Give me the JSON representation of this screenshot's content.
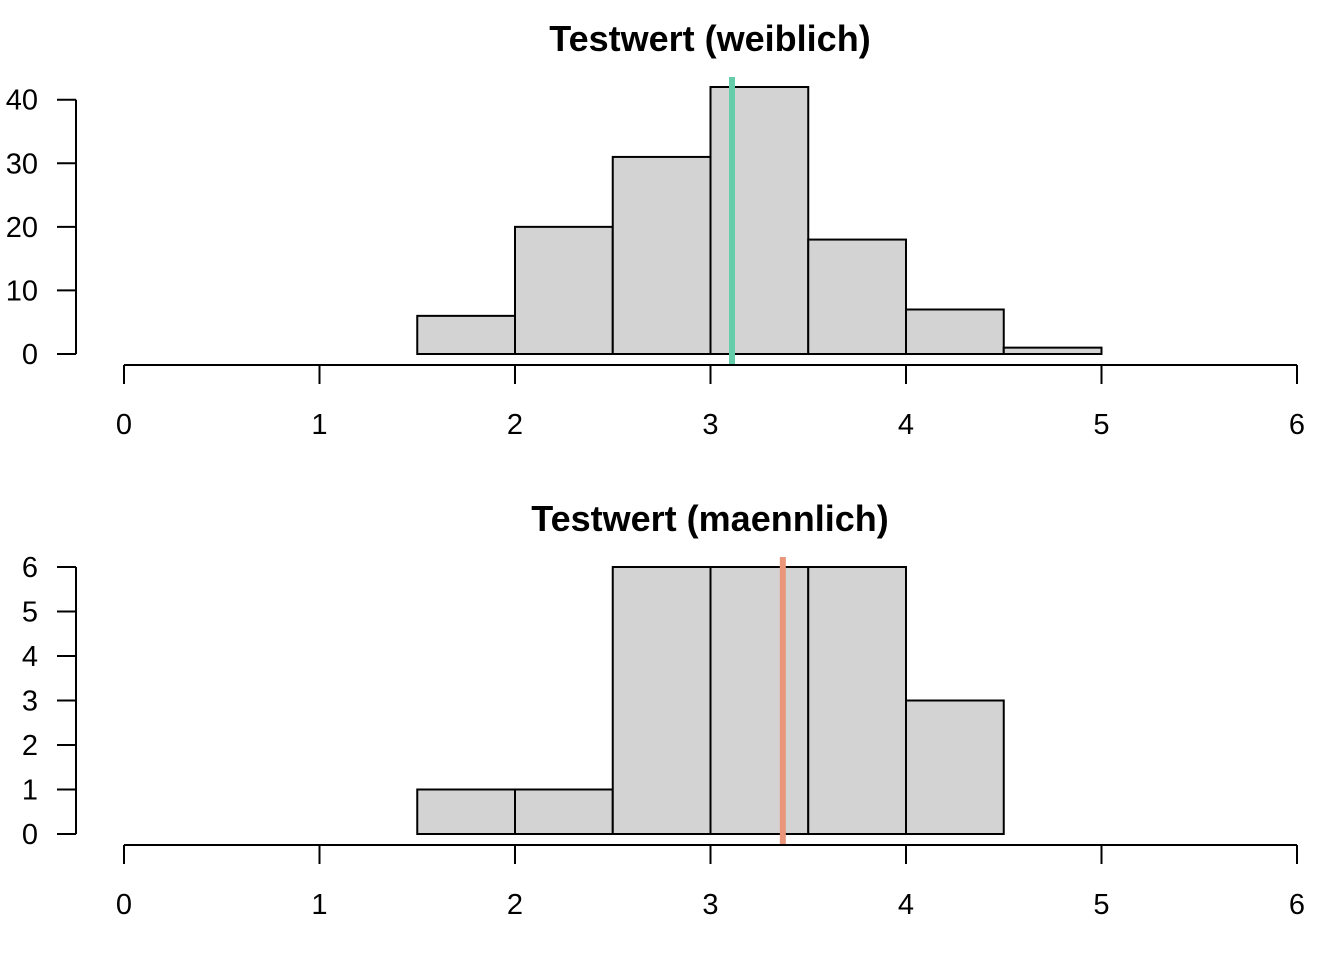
{
  "chart_data": [
    {
      "type": "bar",
      "title": "Testwert (weiblich)",
      "xlabel": "",
      "ylabel": "",
      "bin_edges": [
        1.5,
        2.0,
        2.5,
        3.0,
        3.5,
        4.0,
        4.5,
        5.0
      ],
      "values": [
        6,
        20,
        31,
        42,
        18,
        7,
        1
      ],
      "xlim": [
        0,
        6
      ],
      "ylim": [
        0,
        42
      ],
      "x_ticks": [
        "0",
        "1",
        "2",
        "3",
        "4",
        "5",
        "6"
      ],
      "y_ticks": [
        "0",
        "10",
        "20",
        "30",
        "40"
      ],
      "reference_line": {
        "x": 3.11,
        "color": "#66cdaa"
      },
      "bar_color": "#d3d3d3",
      "grid": false
    },
    {
      "type": "bar",
      "title": "Testwert (maennlich)",
      "xlabel": "",
      "ylabel": "",
      "bin_edges": [
        1.5,
        2.0,
        2.5,
        3.0,
        3.5,
        4.0,
        4.5
      ],
      "values": [
        1,
        1,
        6,
        6,
        6,
        3
      ],
      "xlim": [
        0,
        6
      ],
      "ylim": [
        0,
        6
      ],
      "x_ticks": [
        "0",
        "1",
        "2",
        "3",
        "4",
        "5",
        "6"
      ],
      "y_ticks": [
        "0",
        "1",
        "2",
        "3",
        "4",
        "5",
        "6"
      ],
      "reference_line": {
        "x": 3.37,
        "color": "#e9967a"
      },
      "bar_color": "#d3d3d3",
      "grid": false
    }
  ]
}
